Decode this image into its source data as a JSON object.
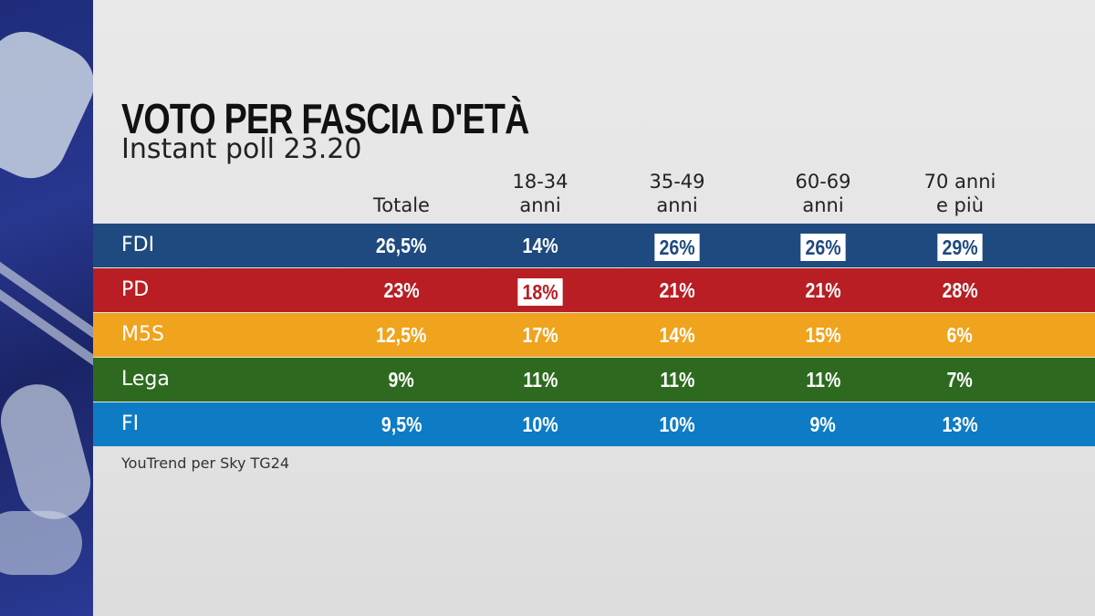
{
  "chart_data": {
    "type": "table",
    "title": "VOTO PER FASCIA D'ETÀ",
    "subtitle": "Instant poll 23.20",
    "columns": [
      "Totale",
      "18-34 anni",
      "35-49 anni",
      "60-69 anni",
      "70 anni e più"
    ],
    "column_labels": [
      [
        "Totale"
      ],
      [
        "18-34",
        "anni"
      ],
      [
        "35-49",
        "anni"
      ],
      [
        "60-69",
        "anni"
      ],
      [
        "70 anni",
        "e più"
      ]
    ],
    "rows": [
      {
        "party": "FDI",
        "color": "#1e4a7f",
        "values": [
          "26,5%",
          "14%",
          "26%",
          "26%",
          "29%"
        ],
        "highlight": [
          false,
          false,
          true,
          true,
          true
        ]
      },
      {
        "party": "PD",
        "color": "#b81e23",
        "values": [
          "23%",
          "18%",
          "21%",
          "21%",
          "28%"
        ],
        "highlight": [
          false,
          true,
          false,
          false,
          false
        ]
      },
      {
        "party": "M5S",
        "color": "#f0a31c",
        "values": [
          "12,5%",
          "17%",
          "14%",
          "15%",
          "6%"
        ],
        "highlight": [
          false,
          false,
          false,
          false,
          false
        ]
      },
      {
        "party": "Lega",
        "color": "#2d6a1f",
        "values": [
          "9%",
          "11%",
          "11%",
          "11%",
          "7%"
        ],
        "highlight": [
          false,
          false,
          false,
          false,
          false
        ]
      },
      {
        "party": "FI",
        "color": "#0d7cc4",
        "values": [
          "9,5%",
          "10%",
          "10%",
          "9%",
          "13%"
        ],
        "highlight": [
          false,
          false,
          false,
          false,
          false
        ]
      }
    ],
    "source": "YouTrend per Sky TG24"
  }
}
